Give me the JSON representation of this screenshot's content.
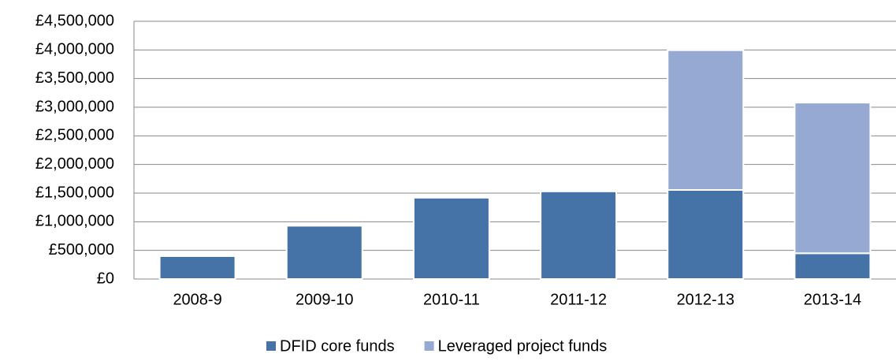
{
  "chart_data": {
    "type": "stacked_bar",
    "categories": [
      "2008-9",
      "2009-10",
      "2010-11",
      "2011-12",
      "2012-13",
      "2013-14"
    ],
    "series": [
      {
        "name": "DFID core funds",
        "color": "#4572a7",
        "values": [
          400000,
          930000,
          1420000,
          1530000,
          1555000,
          450000
        ]
      },
      {
        "name": "Leveraged project funds",
        "color": "#95a9d2",
        "values": [
          0,
          0,
          0,
          0,
          2440000,
          2630000
        ]
      }
    ],
    "ylim": [
      0,
      4500000
    ],
    "yticks": [
      {
        "value": 0,
        "label": "£0"
      },
      {
        "value": 500000,
        "label": "£500,000"
      },
      {
        "value": 1000000,
        "label": "£1,000,000"
      },
      {
        "value": 1500000,
        "label": "£1,500,000"
      },
      {
        "value": 2000000,
        "label": "£2,000,000"
      },
      {
        "value": 2500000,
        "label": "£2,500,000"
      },
      {
        "value": 3000000,
        "label": "£3,000,000"
      },
      {
        "value": 3500000,
        "label": "£3,500,000"
      },
      {
        "value": 4000000,
        "label": "£4,000,000"
      },
      {
        "value": 4500000,
        "label": "£4,500,000"
      }
    ],
    "grid": true,
    "legend": "bottom"
  }
}
